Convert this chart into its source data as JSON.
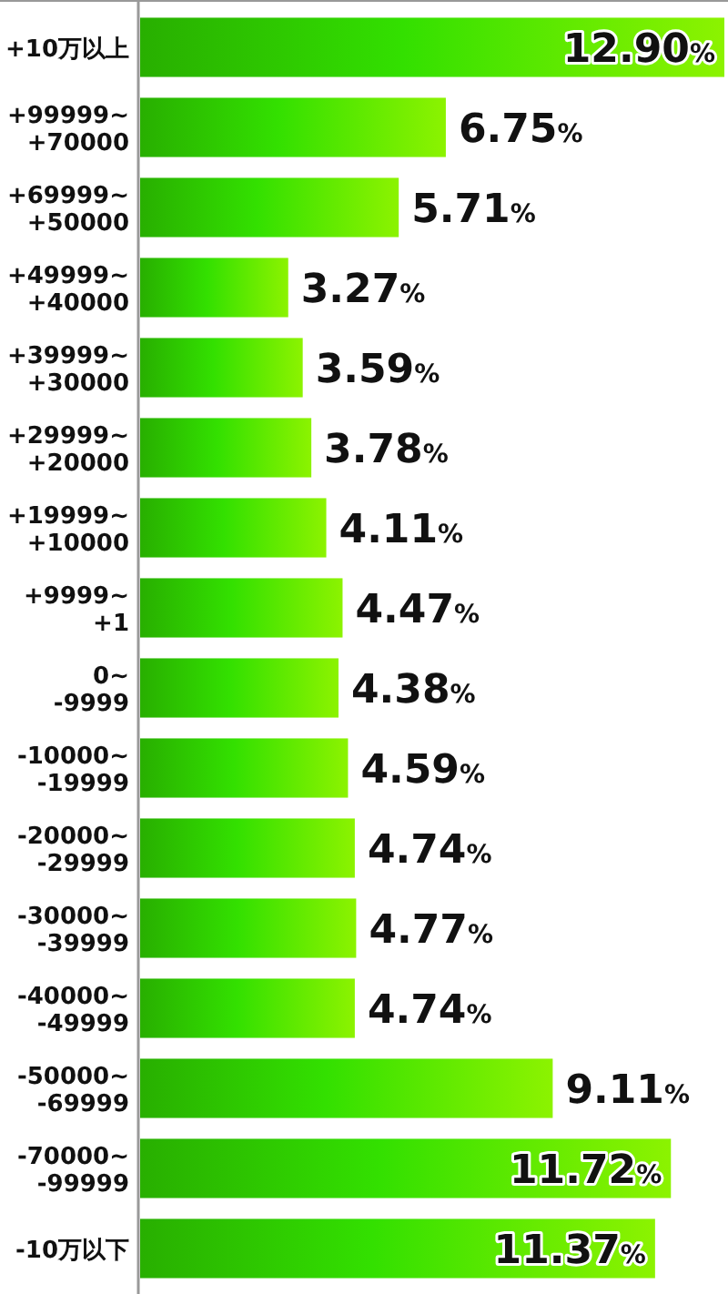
{
  "chart_data": {
    "type": "bar",
    "orientation": "horizontal",
    "categories": [
      "+10万以上",
      "+99999~\n+70000",
      "+69999~\n+50000",
      "+49999~\n+40000",
      "+39999~\n+30000",
      "+29999~\n+20000",
      "+19999~\n+10000",
      "+9999~\n+1",
      "0~\n-9999",
      "-10000~\n-19999",
      "-20000~\n-29999",
      "-30000~\n-39999",
      "-40000~\n-49999",
      "-50000~\n-69999",
      "-70000~\n-99999",
      "-10万以下"
    ],
    "values": [
      12.9,
      6.75,
      5.71,
      3.27,
      3.59,
      3.78,
      4.11,
      4.47,
      4.38,
      4.59,
      4.74,
      4.77,
      4.74,
      9.11,
      11.72,
      11.37
    ],
    "value_labels": [
      "12.90%",
      "6.75%",
      "5.71%",
      "3.27%",
      "3.59%",
      "3.78%",
      "4.11%",
      "4.47%",
      "4.38%",
      "4.59%",
      "4.74%",
      "4.77%",
      "4.74%",
      "9.11%",
      "11.72%",
      "11.37%"
    ],
    "color": "#33e000"
  }
}
